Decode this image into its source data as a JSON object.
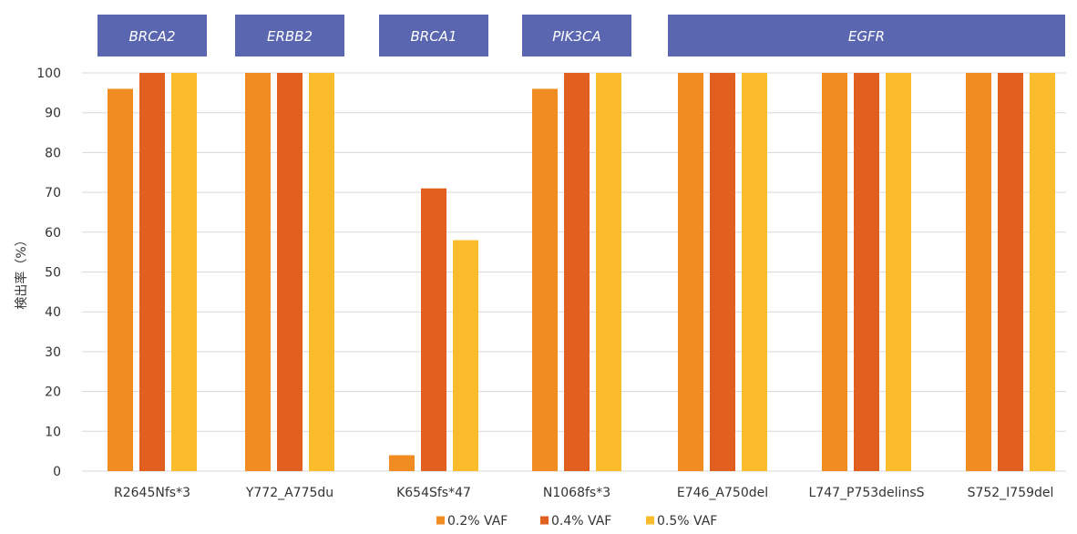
{
  "chart_data": {
    "type": "bar",
    "ylabel": "検出率（%）",
    "ylim": [
      0,
      100
    ],
    "yticks": [
      0,
      10,
      20,
      30,
      40,
      50,
      60,
      70,
      80,
      90,
      100
    ],
    "grid": true,
    "legend_position": "bottom",
    "categories": [
      "R2645Nfs*3",
      "Y772_A775du",
      "K654Sfs*47",
      "N1068fs*3",
      "E746_A750del",
      "L747_P753delinsS",
      "S752_I759del"
    ],
    "series": [
      {
        "name": "0.2% VAF",
        "color": "#F08C22",
        "values": [
          96,
          100,
          4,
          96,
          100,
          100,
          100
        ]
      },
      {
        "name": "0.4% VAF",
        "color": "#E2601F",
        "values": [
          100,
          100,
          71,
          100,
          100,
          100,
          100
        ]
      },
      {
        "name": "0.5% VAF",
        "color": "#FBBC2C",
        "values": [
          100,
          100,
          58,
          100,
          100,
          100,
          100
        ]
      }
    ],
    "gene_groups": [
      {
        "label": "BRCA2",
        "first": 0,
        "last": 0
      },
      {
        "label": "ERBB2",
        "first": 1,
        "last": 1
      },
      {
        "label": "BRCA1",
        "first": 2,
        "last": 2
      },
      {
        "label": "PIK3CA",
        "first": 3,
        "last": 3
      },
      {
        "label": "EGFR",
        "first": 4,
        "last": 6
      }
    ],
    "gene_group_color": "#5A67B0",
    "grid_color": "#D9D9D9"
  }
}
